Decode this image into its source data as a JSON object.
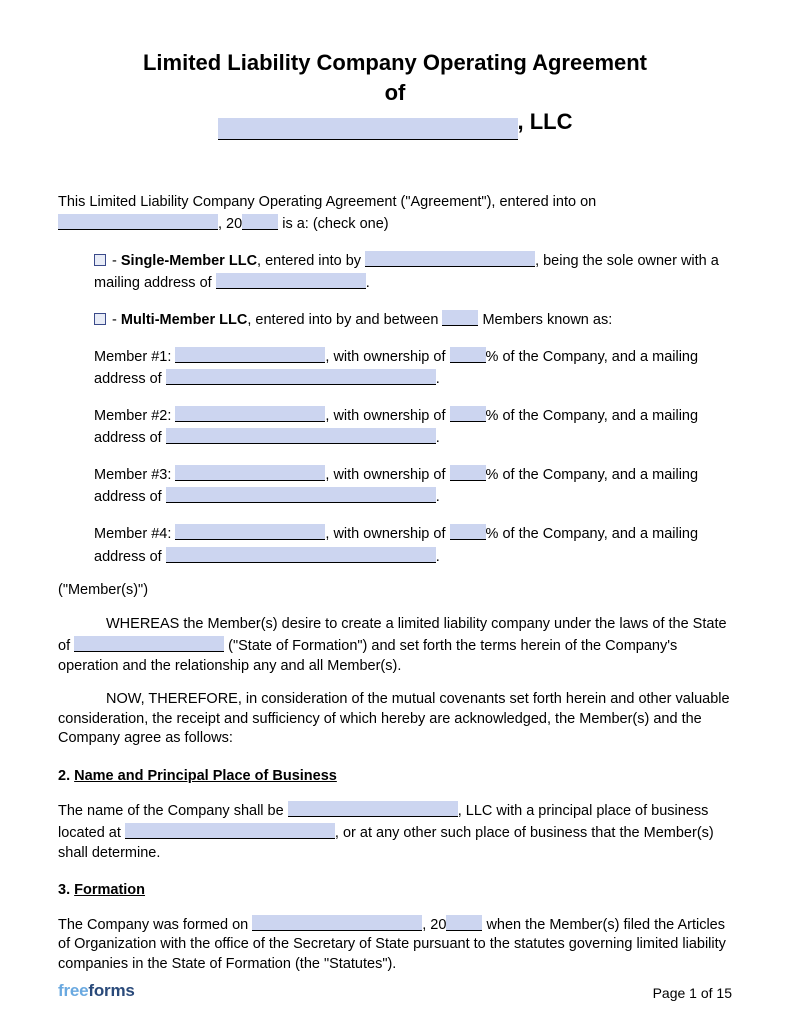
{
  "colors": {
    "blank_fill": "#ccd5f0",
    "blank_border": "#000000",
    "checkbox_border": "#3a4a8a",
    "checkbox_fill": "#e8ecf7",
    "text": "#000000",
    "logo_free": "#6aa9e0",
    "logo_forms": "#2a4a7a"
  },
  "blank_widths": {
    "title_name": 300,
    "date_long": 160,
    "year_short": 36,
    "single_owner": 170,
    "single_addr": 150,
    "multi_count": 36,
    "member_name": 150,
    "pct": 36,
    "member_addr": 270,
    "state": 150,
    "company_name": 170,
    "biz_addr": 210,
    "formed_date": 170,
    "formed_year": 36
  },
  "title": {
    "line1": "Limited Liability Company Operating Agreement",
    "line2": "of",
    "suffix": ", LLC"
  },
  "intro": {
    "pre": "This Limited Liability Company Operating Agreement (\"Agreement\"), entered into on ",
    "mid": ", 20",
    "post": " is a: (check one)"
  },
  "single": {
    "dash": " - ",
    "label": "Single-Member LLC",
    "t1": ", entered into by ",
    "t2": ", being the sole owner with a mailing address of ",
    "t3": "."
  },
  "multi": {
    "dash": " - ",
    "label": "Multi-Member LLC",
    "t1": ", entered into by and between ",
    "t2": " Members known as:"
  },
  "member_template": {
    "t1": ", with ownership of ",
    "t2": "% of the Company, and a mailing address of ",
    "t3": "."
  },
  "members": [
    {
      "label": "Member #1: "
    },
    {
      "label": "Member #2: "
    },
    {
      "label": "Member #3: "
    },
    {
      "label": "Member #4: "
    }
  ],
  "members_close": "(\"Member(s)\")",
  "whereas": {
    "pre": "WHEREAS the Member(s) desire to create a limited liability company under the laws of the State of ",
    "post": " (\"State of Formation\") and set forth the terms herein of the Company's operation and the relationship any and all Member(s)."
  },
  "now_therefore": "NOW, THEREFORE, in consideration of the mutual covenants set forth herein and other valuable consideration, the receipt and sufficiency of which hereby are acknowledged, the Member(s) and the Company agree as follows:",
  "section2": {
    "num": "2.  ",
    "heading": "Name and Principal Place of Business",
    "t1": "The name of the Company shall be ",
    "t2": ", LLC with a principal place of business located at ",
    "t3": ", or at any other such place of business that the Member(s) shall determine."
  },
  "section3": {
    "num": "3.  ",
    "heading": "Formation",
    "t1": "The Company was formed on ",
    "t2": ", 20",
    "t3": " when the Member(s) filed the Articles of Organization with the office of the Secretary of State pursuant to the statutes governing limited liability companies in the State of Formation (the \"Statutes\")."
  },
  "footer": {
    "logo_free": "free",
    "logo_forms": "forms",
    "page": "Page 1 of 15"
  }
}
